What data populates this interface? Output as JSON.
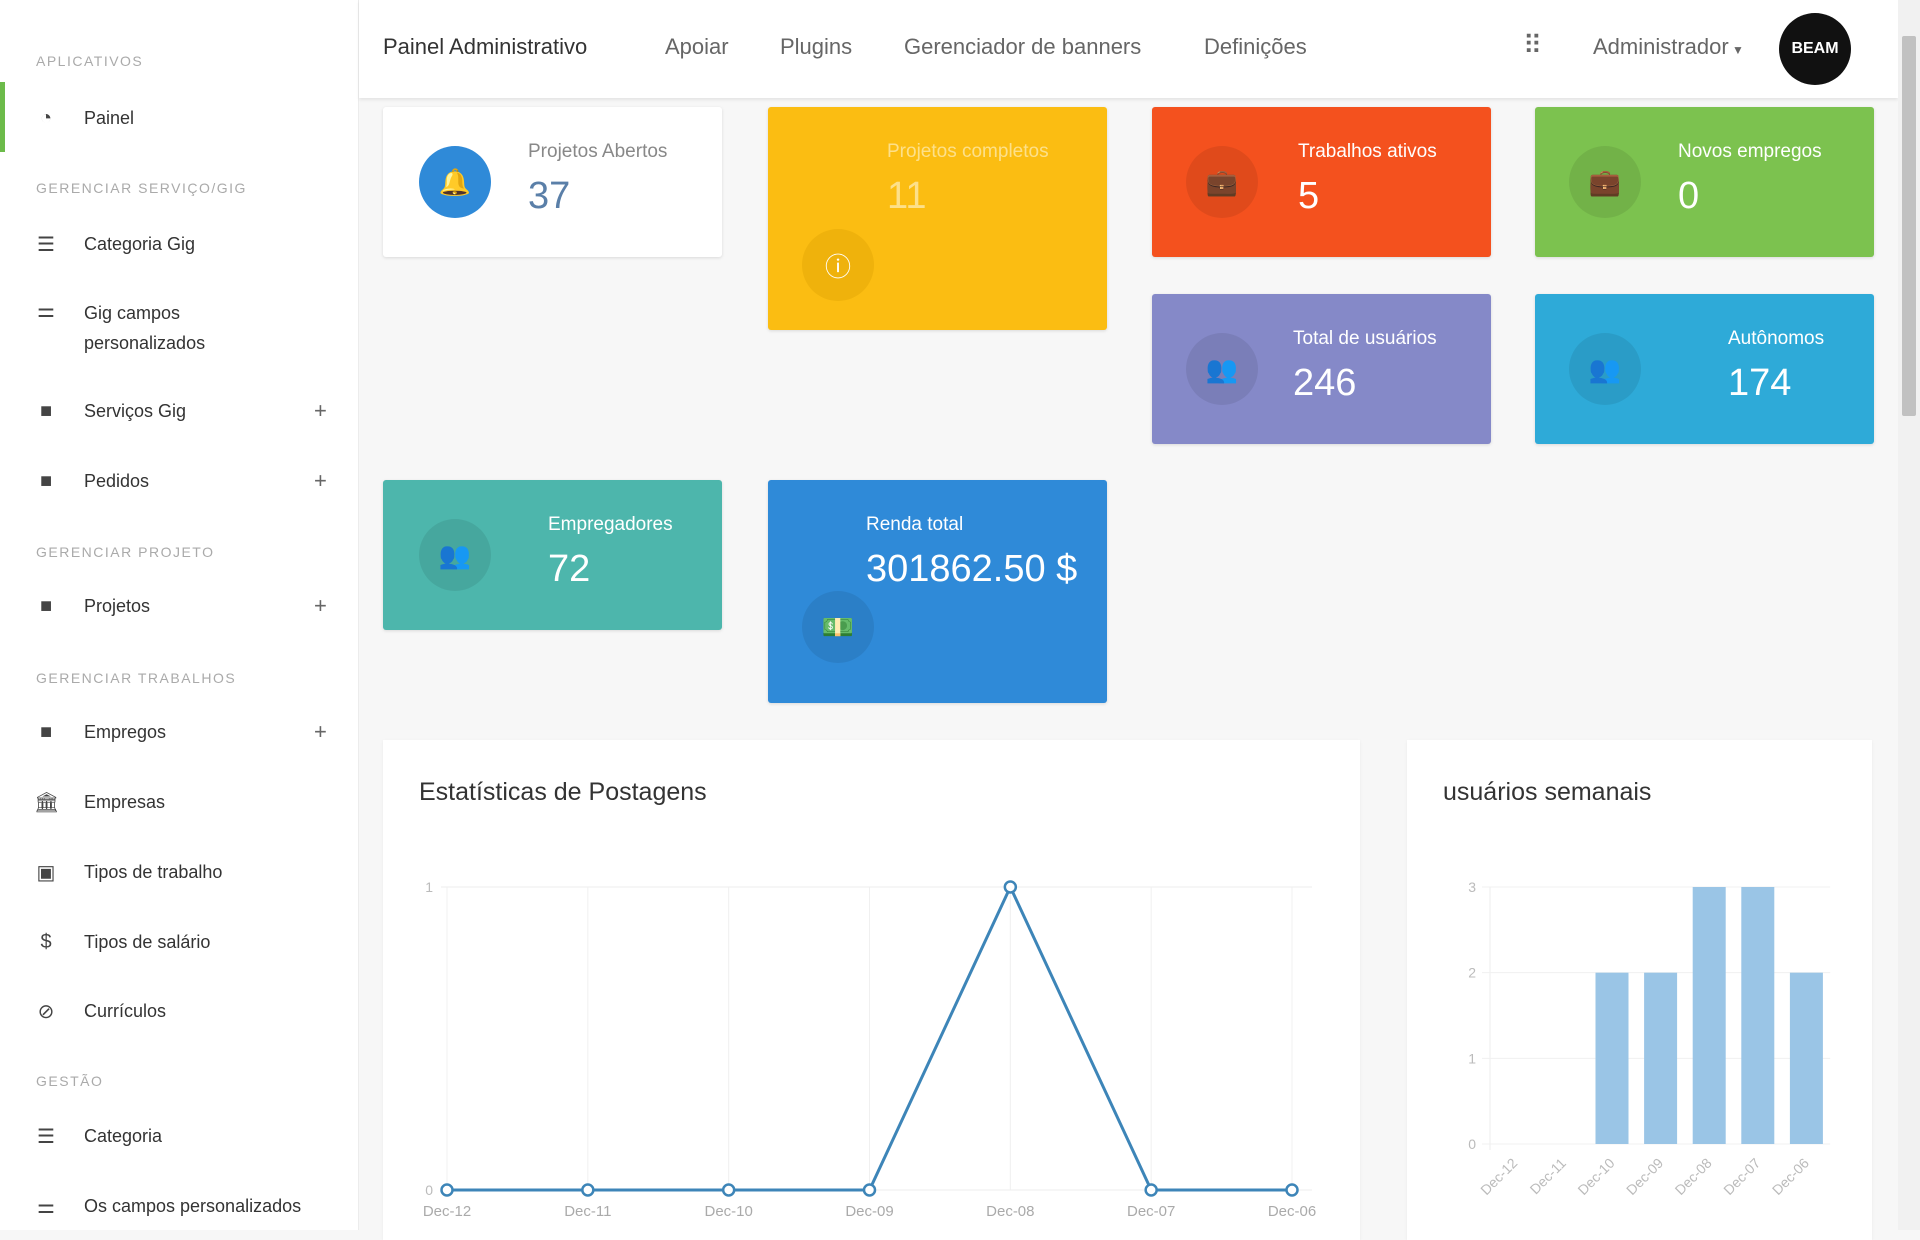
{
  "sidebar": {
    "sections": [
      "APLICATIVOS",
      "GERENCIAR SERVIÇO/GIG",
      "GERENCIAR PROJETO",
      "GERENCIAR TRABALHOS",
      "GESTÃO"
    ],
    "items": [
      {
        "label": "Painel",
        "icon": "dashboard-icon"
      },
      {
        "label": "Categoria Gig",
        "icon": "list-icon"
      },
      {
        "label": "Gig campos personalizados",
        "icon": "sliders-icon"
      },
      {
        "label": "Serviços Gig",
        "icon": "briefcase-icon",
        "expand": "+"
      },
      {
        "label": "Pedidos",
        "icon": "briefcase-icon",
        "expand": "+"
      },
      {
        "label": "Projetos",
        "icon": "briefcase-icon",
        "expand": "+"
      },
      {
        "label": "Empregos",
        "icon": "briefcase-icon",
        "expand": "+"
      },
      {
        "label": "Empresas",
        "icon": "bank-icon"
      },
      {
        "label": "Tipos de trabalho",
        "icon": "suitcase-icon"
      },
      {
        "label": "Tipos de salário",
        "icon": "dollar-icon"
      },
      {
        "label": "Currículos",
        "icon": "paperclip-icon"
      },
      {
        "label": "Categoria",
        "icon": "list-icon"
      },
      {
        "label": "Os campos personalizados",
        "icon": "sliders-icon"
      }
    ],
    "active_color": "#6cbb4a"
  },
  "header": {
    "title": "Painel Administrativo",
    "nav": [
      "Apoiar",
      "Plugins",
      "Gerenciador de banners",
      "Definições"
    ],
    "user": "Administrador",
    "avatar_text": "BEAM"
  },
  "cards": [
    {
      "label": "Projetos Abertos",
      "value": "37",
      "color": "#ffffff",
      "icon": "bell-icon"
    },
    {
      "label": "Projetos completos",
      "value": "11",
      "color": "#fbbd12",
      "icon": "info-icon"
    },
    {
      "label": "Trabalhos ativos",
      "value": "5",
      "color": "#f4511e",
      "icon": "briefcase-icon"
    },
    {
      "label": "Novos empregos",
      "value": "0",
      "color": "#7cc24f",
      "icon": "briefcase-icon"
    },
    {
      "label": "Total de usuários",
      "value": "246",
      "color": "#8589c8",
      "icon": "users-icon"
    },
    {
      "label": "Autônomos",
      "value": "174",
      "color": "#2eaad8",
      "icon": "users-icon"
    },
    {
      "label": "Empregadores",
      "value": "72",
      "color": "#4db6ac",
      "icon": "users-icon"
    },
    {
      "label": "Renda total",
      "value": "301862.50 $",
      "color": "#2f8ad8",
      "icon": "money-icon"
    }
  ],
  "chart_data": [
    {
      "type": "line",
      "title": "Estatísticas de Postagens",
      "categories": [
        "Dec-12",
        "Dec-11",
        "Dec-10",
        "Dec-09",
        "Dec-08",
        "Dec-07",
        "Dec-06"
      ],
      "values": [
        0,
        0,
        0,
        0,
        1,
        0,
        0
      ],
      "ylim": [
        0,
        1
      ],
      "yticks": [
        "0",
        "1"
      ],
      "grid": true,
      "color": "#3d85b8"
    },
    {
      "type": "bar",
      "title": "usuários semanais",
      "categories": [
        "Dec-12",
        "Dec-11",
        "Dec-10",
        "Dec-09",
        "Dec-08",
        "Dec-07",
        "Dec-06"
      ],
      "values": [
        0,
        0,
        2,
        2,
        3,
        3,
        2
      ],
      "ylim": [
        0,
        3
      ],
      "yticks": [
        "0",
        "1",
        "2",
        "3"
      ],
      "grid": true,
      "color": "#9ac5e6"
    }
  ]
}
